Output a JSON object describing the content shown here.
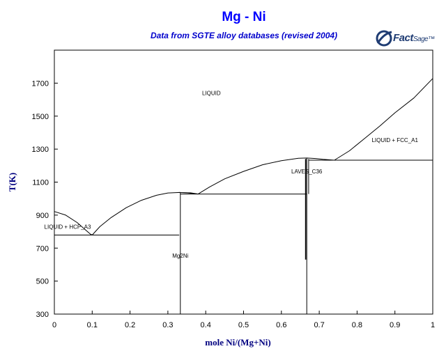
{
  "colors": {
    "title": "#0000ff",
    "subtitle": "#0000cc",
    "axis_label": "#000080",
    "logo": "#1f3c73",
    "lines": "#000000"
  },
  "logo": {
    "text_main": "Fact",
    "text_small": "Sage™",
    "icon": "factsage-globe-icon"
  },
  "chart_data": {
    "type": "line",
    "title": "Mg - Ni",
    "subtitle": "Data from SGTE alloy databases (revised 2004)",
    "xlabel": "mole Ni/(Mg+Ni)",
    "ylabel": "T(K)",
    "xlim": [
      0,
      1
    ],
    "ylim": [
      300,
      1900
    ],
    "grid": false,
    "x_ticks": [
      {
        "value": 0,
        "label": "0"
      },
      {
        "value": 0.1,
        "label": "0.1"
      },
      {
        "value": 0.2,
        "label": "0.2"
      },
      {
        "value": 0.3,
        "label": "0.3"
      },
      {
        "value": 0.4,
        "label": "0.4"
      },
      {
        "value": 0.5,
        "label": "0.5"
      },
      {
        "value": 0.6,
        "label": "0.6"
      },
      {
        "value": 0.7,
        "label": "0.7"
      },
      {
        "value": 0.8,
        "label": "0.8"
      },
      {
        "value": 0.9,
        "label": "0.9"
      },
      {
        "value": 1,
        "label": "1"
      }
    ],
    "y_ticks": [
      {
        "value": 300,
        "label": "300"
      },
      {
        "value": 500,
        "label": "500"
      },
      {
        "value": 700,
        "label": "700"
      },
      {
        "value": 900,
        "label": "900"
      },
      {
        "value": 1100,
        "label": "1100"
      },
      {
        "value": 1300,
        "label": "1300"
      },
      {
        "value": 1500,
        "label": "1500"
      },
      {
        "value": 1700,
        "label": "1700"
      }
    ],
    "series": [
      {
        "id": "liquidus-mg-side",
        "points": [
          [
            0,
            922
          ],
          [
            0.03,
            900
          ],
          [
            0.06,
            855
          ],
          [
            0.08,
            815
          ],
          [
            0.095,
            785
          ],
          [
            0.1,
            779
          ]
        ]
      },
      {
        "id": "liquidus-mg2ni-left",
        "points": [
          [
            0.1,
            779
          ],
          [
            0.12,
            830
          ],
          [
            0.15,
            885
          ],
          [
            0.19,
            945
          ],
          [
            0.23,
            990
          ],
          [
            0.27,
            1020
          ],
          [
            0.3,
            1034
          ],
          [
            0.33,
            1037
          ],
          [
            0.35,
            1035
          ],
          [
            0.38,
            1028
          ]
        ]
      },
      {
        "id": "liquidus-mg2ni-right",
        "points": [
          [
            0.33,
            1037
          ],
          [
            0.36,
            1035
          ],
          [
            0.38,
            1028
          ]
        ]
      },
      {
        "id": "liquidus-laves",
        "points": [
          [
            0.38,
            1028
          ],
          [
            0.41,
            1070
          ],
          [
            0.45,
            1120
          ],
          [
            0.5,
            1165
          ],
          [
            0.55,
            1205
          ],
          [
            0.6,
            1230
          ],
          [
            0.645,
            1245
          ],
          [
            0.667,
            1246
          ],
          [
            0.69,
            1243
          ],
          [
            0.71,
            1238
          ],
          [
            0.74,
            1233
          ]
        ]
      },
      {
        "id": "liquidus-ni-side",
        "points": [
          [
            0.74,
            1233
          ],
          [
            0.78,
            1290
          ],
          [
            0.82,
            1365
          ],
          [
            0.86,
            1440
          ],
          [
            0.9,
            1520
          ],
          [
            0.95,
            1610
          ],
          [
            1.0,
            1728
          ]
        ]
      },
      {
        "id": "eutectic-1",
        "points": [
          [
            0,
            779
          ],
          [
            0.33,
            779
          ]
        ]
      },
      {
        "id": "mg2ni-line",
        "points": [
          [
            0.333,
            300
          ],
          [
            0.333,
            1037
          ]
        ]
      },
      {
        "id": "eutectic-2",
        "points": [
          [
            0.333,
            1028
          ],
          [
            0.667,
            1028
          ]
        ]
      },
      {
        "id": "laves-left",
        "points": [
          [
            0.664,
            630
          ],
          [
            0.664,
            1240
          ]
        ]
      },
      {
        "id": "laves-mid",
        "points": [
          [
            0.667,
            300
          ],
          [
            0.667,
            1246
          ]
        ]
      },
      {
        "id": "laves-right",
        "points": [
          [
            0.672,
            1028
          ],
          [
            0.672,
            1240
          ]
        ]
      },
      {
        "id": "eutectic-3",
        "points": [
          [
            0.672,
            1233
          ],
          [
            1.0,
            1233
          ]
        ]
      }
    ],
    "annotations": [
      {
        "text": "LIQUID",
        "x": 0.415,
        "y": 1628
      },
      {
        "text": "LIQUID + FCC_A1",
        "x": 0.9,
        "y": 1342
      },
      {
        "text": "LAVES_C36",
        "x": 0.667,
        "y": 1152
      },
      {
        "text": "LIQUID + HCP_A3",
        "x": 0.035,
        "y": 818
      },
      {
        "text": "Mg2Ni",
        "x": 0.333,
        "y": 642
      }
    ]
  }
}
